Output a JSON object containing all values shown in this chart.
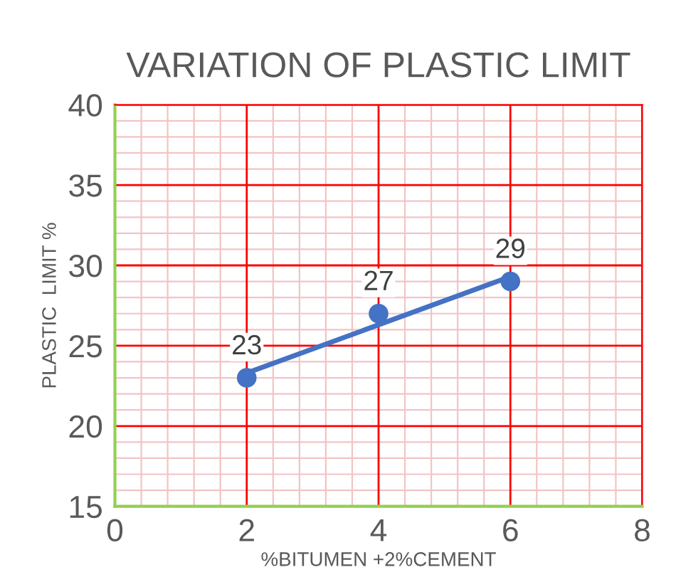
{
  "chart_data": {
    "type": "scatter",
    "title": "VARIATION OF PLASTIC LIMIT",
    "xlabel": "%BITUMEN +2%CEMENT",
    "ylabel": "PLASTIC  LIMIT %",
    "series": [
      {
        "color": "#4472c4",
        "x": [
          2,
          4,
          6
        ],
        "values": [
          23,
          27,
          29
        ],
        "marker": "circle",
        "data_labels": true
      },
      {
        "type": "line",
        "color": "#4472c4",
        "x": [
          2,
          6
        ],
        "values": [
          23.3,
          29.3
        ],
        "marker": "none",
        "line_style": "solid"
      }
    ],
    "xlim": [
      0,
      8
    ],
    "xticks": [
      0,
      {
        "value": 0.4,
        "label": null
      },
      {
        "value": 0.8,
        "label": null
      },
      {
        "value": 1.2,
        "label": null
      },
      {
        "value": 1.6,
        "label": null
      },
      2,
      {
        "value": 2.4,
        "label": null
      },
      {
        "value": 2.8,
        "label": null
      },
      {
        "value": 3.2,
        "label": null
      },
      {
        "value": 3.6,
        "label": null
      },
      4,
      {
        "value": 4.4,
        "label": null
      },
      {
        "value": 4.8,
        "label": null
      },
      {
        "value": 5.2,
        "label": null
      },
      {
        "value": 5.6,
        "label": null
      },
      6,
      {
        "value": 6.4,
        "label": null
      },
      {
        "value": 6.8,
        "label": null
      },
      {
        "value": 7.2,
        "label": null
      },
      {
        "value": 7.6,
        "label": null
      },
      8
    ],
    "ylim": [
      15,
      40
    ],
    "yticks": [
      15,
      {
        "value": 16,
        "label": null
      },
      {
        "value": 17,
        "label": null
      },
      {
        "value": 18,
        "label": null
      },
      {
        "value": 19,
        "label": null
      },
      20,
      {
        "value": 21,
        "label": null
      },
      {
        "value": 22,
        "label": null
      },
      {
        "value": 23,
        "label": null
      },
      {
        "value": 24,
        "label": null
      },
      25,
      {
        "value": 26,
        "label": null
      },
      {
        "value": 27,
        "label": null
      },
      {
        "value": 28,
        "label": null
      },
      {
        "value": 29,
        "label": null
      },
      30,
      {
        "value": 31,
        "label": null
      },
      {
        "value": 32,
        "label": null
      },
      {
        "value": 33,
        "label": null
      },
      {
        "value": 34,
        "label": null
      },
      35,
      {
        "value": 36,
        "label": null
      },
      {
        "value": 37,
        "label": null
      },
      {
        "value": 38,
        "label": null
      },
      {
        "value": 39,
        "label": null
      },
      40
    ],
    "grid": true,
    "legend": false
  }
}
